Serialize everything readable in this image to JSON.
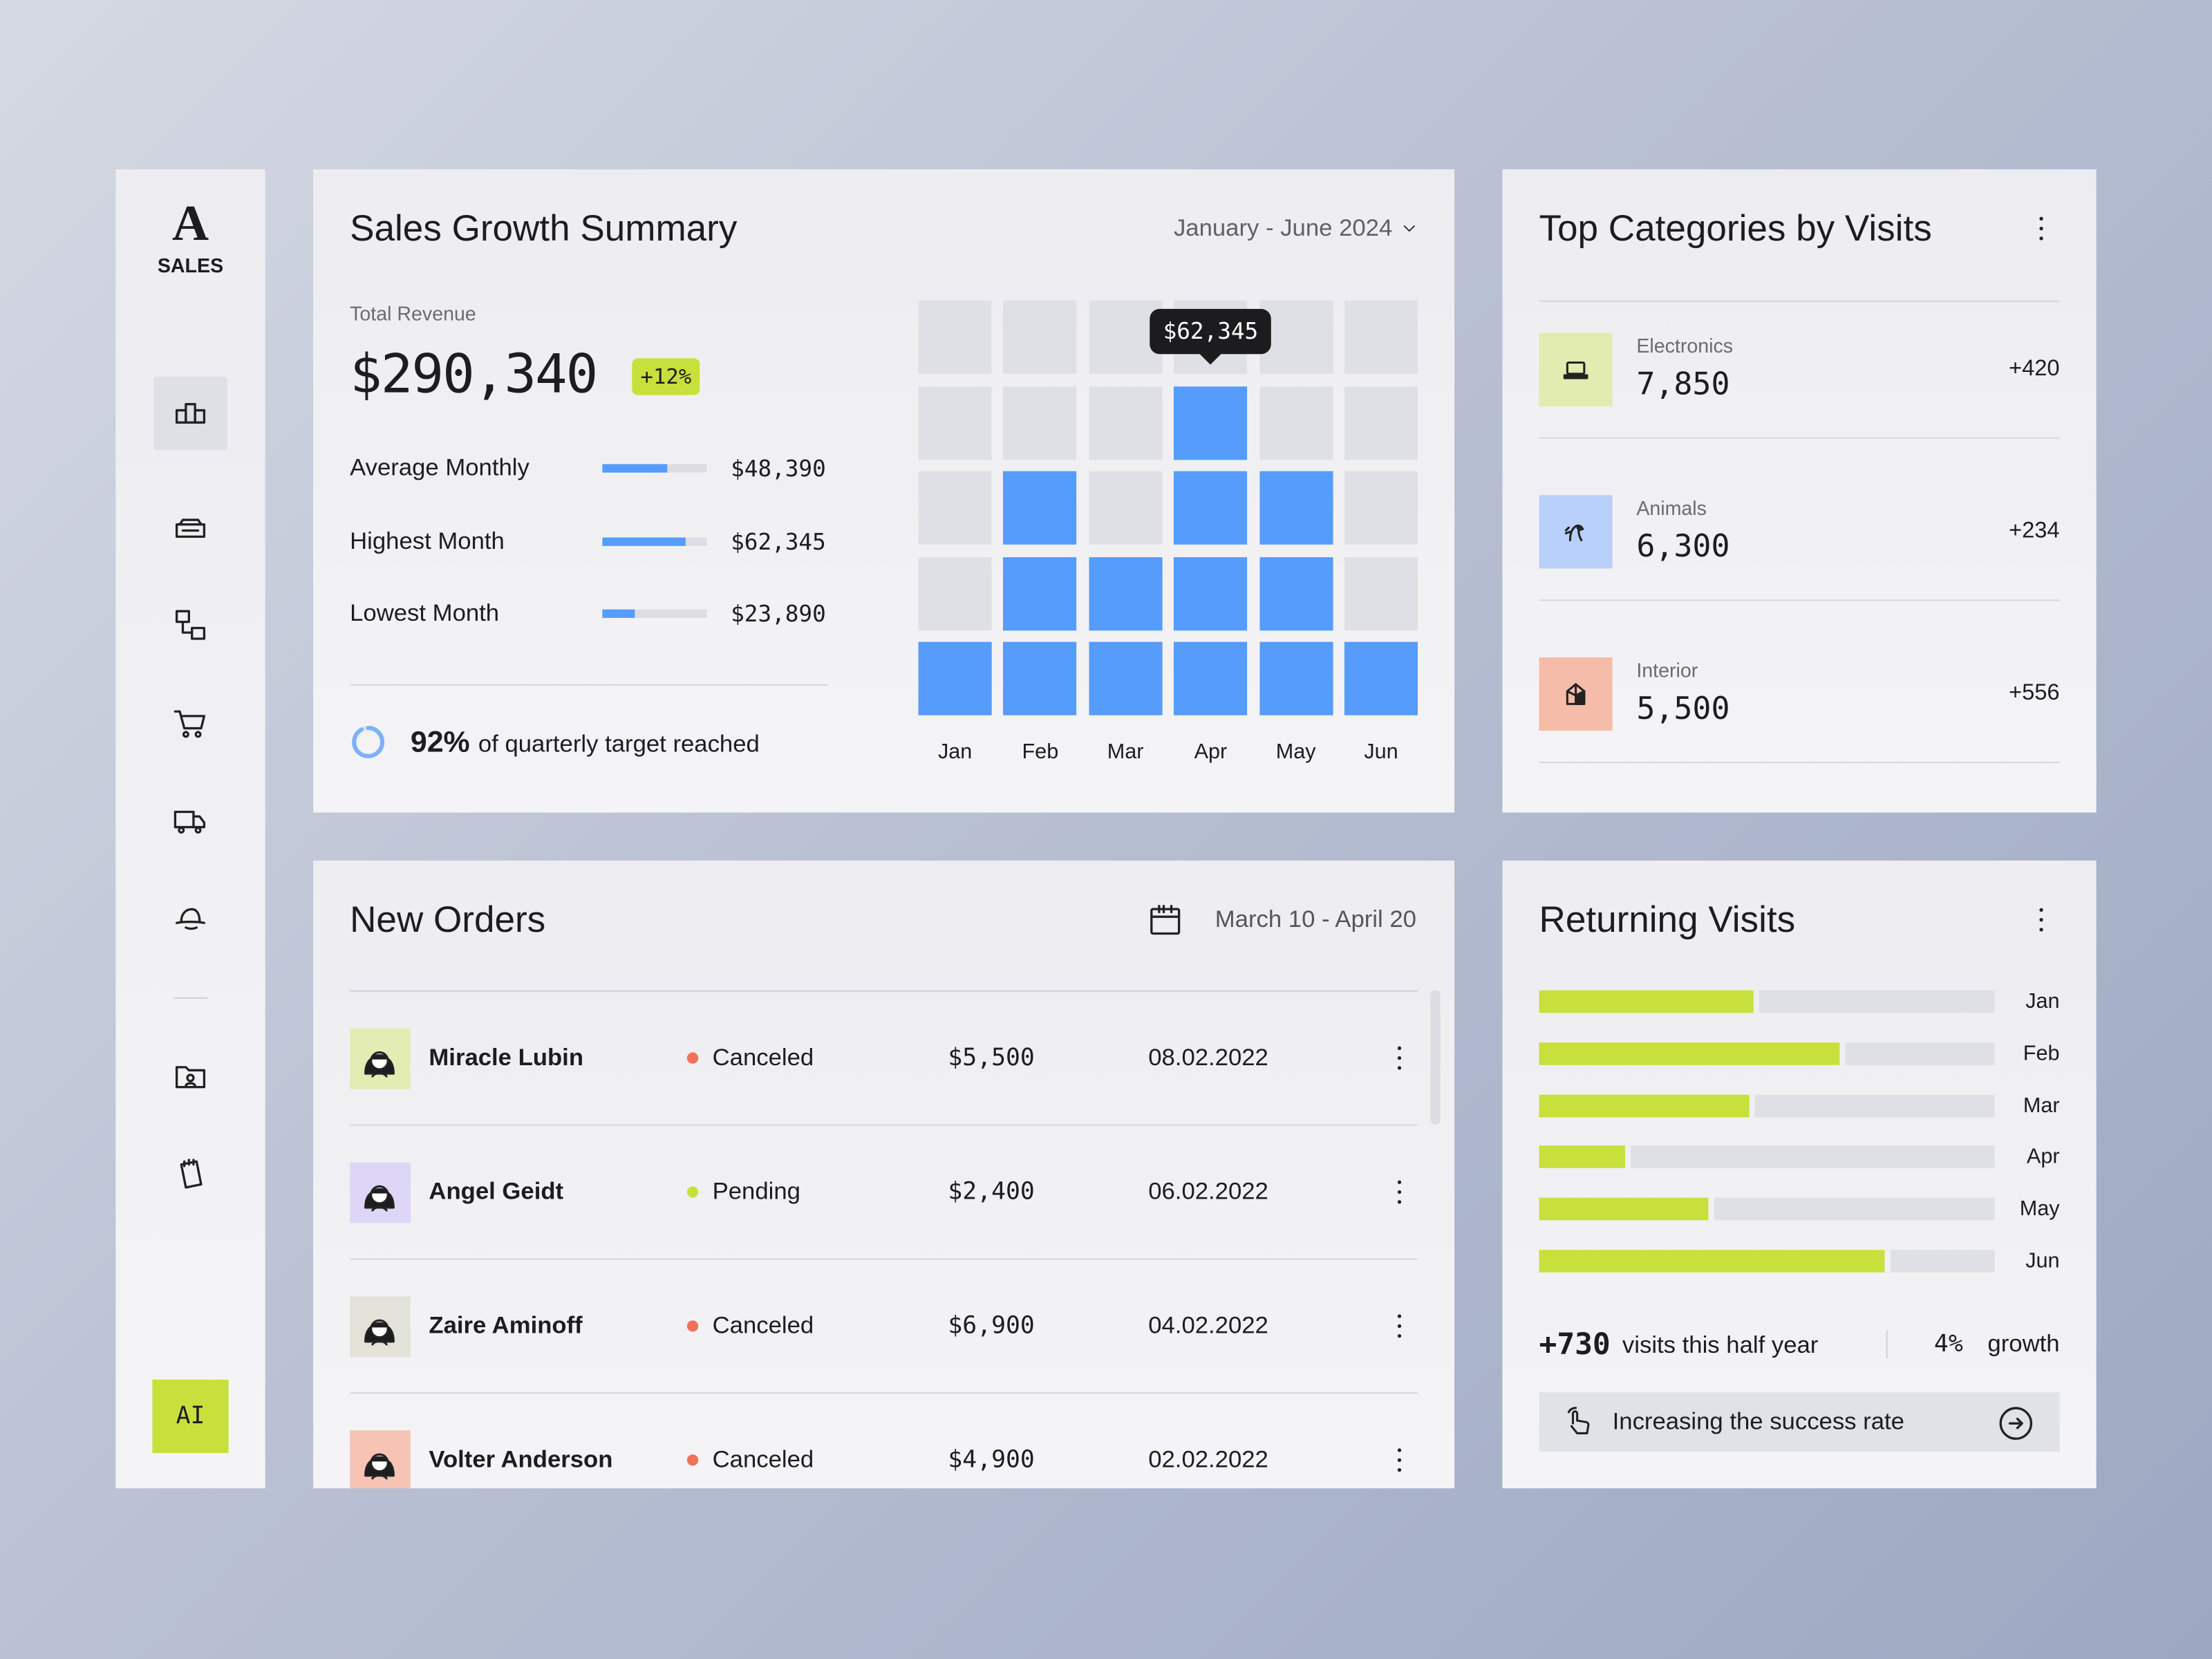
{
  "sidebar": {
    "logo": "A",
    "brand": "SALES",
    "ai_button": "AI"
  },
  "sales_summary": {
    "title": "Sales Growth Summary",
    "period": "January - June 2024",
    "total_label": "Total Revenue",
    "total": "$290,340",
    "change": "+12%",
    "stats": [
      {
        "label": "Average Monthly",
        "value": 48390,
        "value_label": "$48,390"
      },
      {
        "label": "Highest Month",
        "value": 62345,
        "value_label": "$62,345"
      },
      {
        "label": "Lowest Month",
        "value": 23890,
        "value_label": "$23,890"
      }
    ],
    "target": {
      "value": 92,
      "label": "92%",
      "text": "of quarterly target reached"
    },
    "monthly_chart": {
      "categories": [
        "Jan",
        "Feb",
        "Mar",
        "Apr",
        "May",
        "Jun"
      ],
      "values": [
        1,
        3,
        2,
        4,
        3,
        1
      ],
      "color": "#559cfc",
      "tooltip": "$62,345",
      "tooltip_month": "Apr"
    }
  },
  "top_categories": {
    "title": "Top Categories by Visits",
    "items": [
      {
        "name": "Electronics",
        "value": "7,850",
        "change": "+420",
        "color": "#e2ebb0"
      },
      {
        "name": "Animals",
        "value": "6,300",
        "change": "+234",
        "color": "#b9d0fa"
      },
      {
        "name": "Interior",
        "value": "5,500",
        "change": "+556",
        "color": "#f5bcaa"
      }
    ]
  },
  "new_orders": {
    "title": "New Orders",
    "date_range": "March 10 - April 20",
    "rows": [
      {
        "name": "Miracle Lubin",
        "status": "Canceled",
        "status_color": "#f2705a",
        "amount": "$5,500",
        "date": "08.02.2022",
        "avatar_color": "#e3ecb3"
      },
      {
        "name": "Angel Geidt",
        "status": "Pending",
        "status_color": "#c8e03c",
        "amount": "$2,400",
        "date": "06.02.2022",
        "avatar_color": "#ddd6f7"
      },
      {
        "name": "Zaire Aminoff",
        "status": "Canceled",
        "status_color": "#f2705a",
        "amount": "$6,900",
        "date": "04.02.2022",
        "avatar_color": "#e2e2d8"
      },
      {
        "name": "Volter Anderson",
        "status": "Canceled",
        "status_color": "#f2705a",
        "amount": "$4,900",
        "date": "02.02.2022",
        "avatar_color": "#f6c3b4"
      }
    ]
  },
  "returning_visits": {
    "title": "Returning Visits",
    "categories": [
      "Jan",
      "Feb",
      "Mar",
      "Apr",
      "May",
      "Jun"
    ],
    "values": [
      47,
      66,
      46,
      19,
      37,
      76
    ],
    "color": "#c8e03c",
    "visits": "+730",
    "visits_text": "visits this half year",
    "growth": "4%",
    "growth_text": "growth",
    "action": "Increasing the success rate"
  }
}
